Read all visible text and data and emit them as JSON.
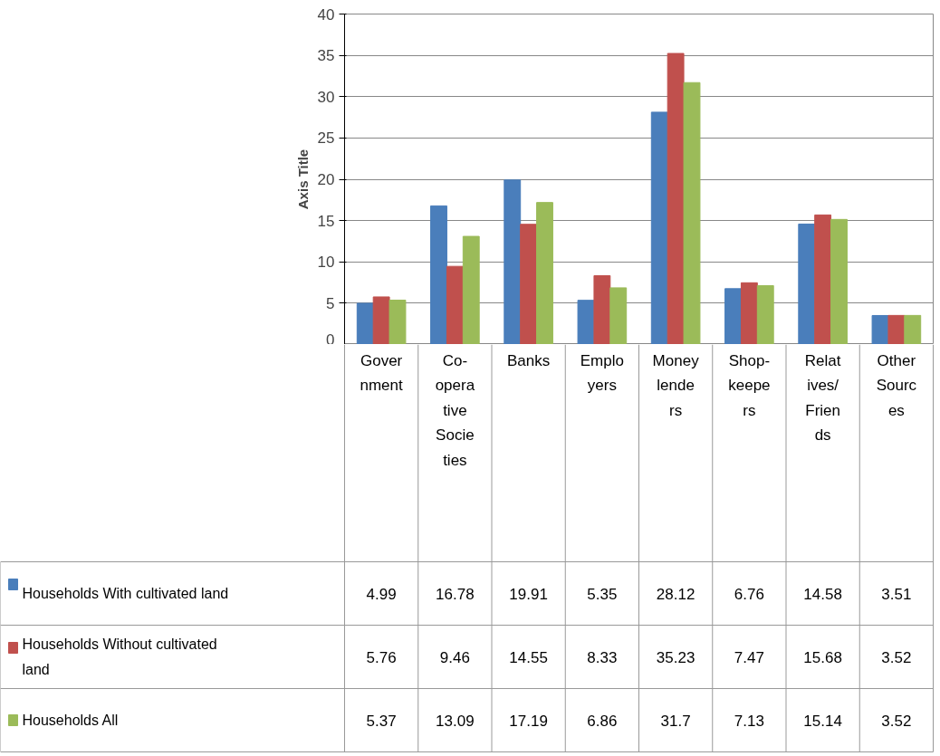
{
  "chart_data": {
    "type": "bar",
    "ylabel": "Axis Title",
    "categories": [
      "Government",
      "Co-operative Societies",
      "Banks",
      "Employers",
      "Money lenders",
      "Shop-keepers",
      "Relatives/Friends",
      "Other Sources"
    ],
    "series": [
      {
        "name": "Households With cultivated land",
        "color": "#4a7ebb",
        "values": [
          4.99,
          16.78,
          19.91,
          5.35,
          28.12,
          6.76,
          14.58,
          3.51
        ]
      },
      {
        "name": "Households Without cultivated land",
        "color": "#c0504d",
        "values": [
          5.76,
          9.46,
          14.55,
          8.33,
          35.23,
          7.47,
          15.68,
          3.52
        ]
      },
      {
        "name": "Households All",
        "color": "#9bbb59",
        "values": [
          5.37,
          13.09,
          17.19,
          6.86,
          31.7,
          7.13,
          15.14,
          3.52
        ]
      }
    ],
    "ylim": [
      0,
      40
    ],
    "yticks": [
      0,
      5,
      10,
      15,
      20,
      25,
      30,
      35,
      40
    ],
    "grid": "y",
    "legend": "bottom",
    "data_labels": true
  }
}
